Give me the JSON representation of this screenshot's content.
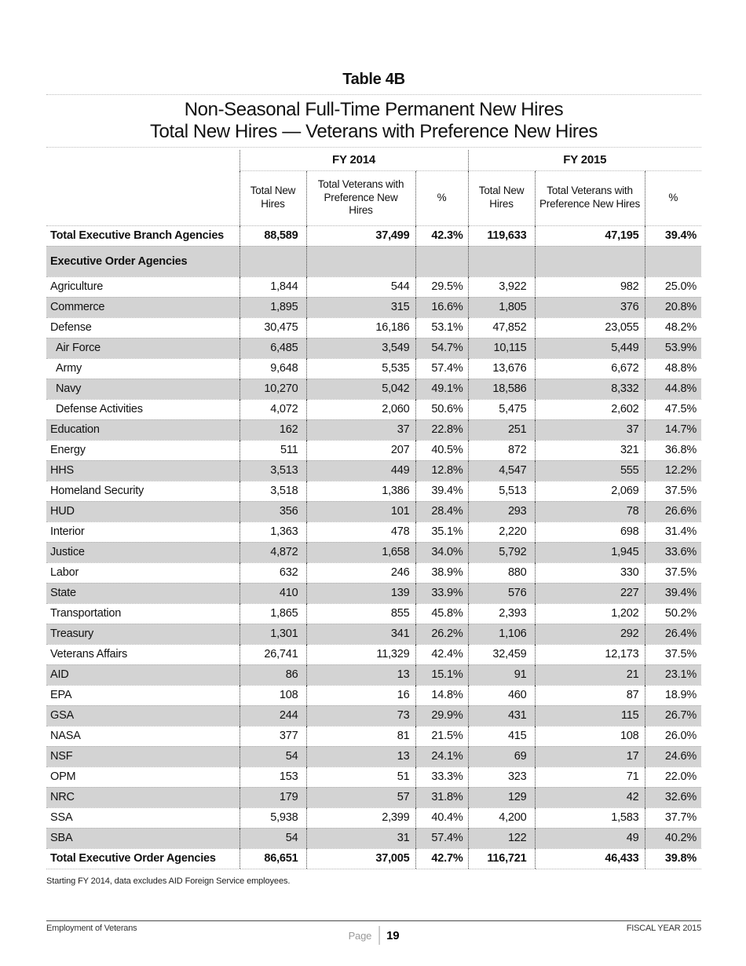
{
  "page": {
    "table_label": "Table 4B",
    "subtitle_line1": "Non-Seasonal Full-Time Permanent New Hires",
    "subtitle_line2": "Total New Hires — Veterans with Preference New Hires",
    "footnote": "Starting FY 2014, data excludes AID Foreign Service employees.",
    "footer": {
      "left": "Employment of Veterans",
      "page_label": "Page",
      "page_number": "19",
      "right": "FISCAL YEAR 2015"
    }
  },
  "colors": {
    "row_stripe": "#d3d3d3"
  },
  "table": {
    "group_headers": [
      "FY 2014",
      "FY 2015"
    ],
    "column_headers": [
      "Total New Hires",
      "Total Veterans with Preference New Hires",
      "%",
      "Total New Hires",
      "Total Veterans with Preference New Hires",
      "%"
    ],
    "rows": [
      {
        "label": "Total Executive Branch Agencies",
        "style": "total",
        "indent": false,
        "values": [
          "88,589",
          "37,499",
          "42.3%",
          "119,633",
          "47,195",
          "39.4%"
        ]
      },
      {
        "label": "Executive Order Agencies",
        "style": "section",
        "indent": false,
        "values": [
          "",
          "",
          "",
          "",
          "",
          ""
        ]
      },
      {
        "label": "Agriculture",
        "style": "normal",
        "indent": false,
        "values": [
          "1,844",
          "544",
          "29.5%",
          "3,922",
          "982",
          "25.0%"
        ]
      },
      {
        "label": "Commerce",
        "style": "normal",
        "indent": false,
        "values": [
          "1,895",
          "315",
          "16.6%",
          "1,805",
          "376",
          "20.8%"
        ]
      },
      {
        "label": "Defense",
        "style": "normal",
        "indent": false,
        "values": [
          "30,475",
          "16,186",
          "53.1%",
          "47,852",
          "23,055",
          "48.2%"
        ]
      },
      {
        "label": "Air Force",
        "style": "normal",
        "indent": true,
        "values": [
          "6,485",
          "3,549",
          "54.7%",
          "10,115",
          "5,449",
          "53.9%"
        ]
      },
      {
        "label": "Army",
        "style": "normal",
        "indent": true,
        "values": [
          "9,648",
          "5,535",
          "57.4%",
          "13,676",
          "6,672",
          "48.8%"
        ]
      },
      {
        "label": "Navy",
        "style": "normal",
        "indent": true,
        "values": [
          "10,270",
          "5,042",
          "49.1%",
          "18,586",
          "8,332",
          "44.8%"
        ]
      },
      {
        "label": "Defense Activities",
        "style": "normal",
        "indent": true,
        "values": [
          "4,072",
          "2,060",
          "50.6%",
          "5,475",
          "2,602",
          "47.5%"
        ]
      },
      {
        "label": "Education",
        "style": "normal",
        "indent": false,
        "values": [
          "162",
          "37",
          "22.8%",
          "251",
          "37",
          "14.7%"
        ]
      },
      {
        "label": "Energy",
        "style": "normal",
        "indent": false,
        "values": [
          "511",
          "207",
          "40.5%",
          "872",
          "321",
          "36.8%"
        ]
      },
      {
        "label": "HHS",
        "style": "normal",
        "indent": false,
        "values": [
          "3,513",
          "449",
          "12.8%",
          "4,547",
          "555",
          "12.2%"
        ]
      },
      {
        "label": "Homeland Security",
        "style": "normal",
        "indent": false,
        "values": [
          "3,518",
          "1,386",
          "39.4%",
          "5,513",
          "2,069",
          "37.5%"
        ]
      },
      {
        "label": "HUD",
        "style": "normal",
        "indent": false,
        "values": [
          "356",
          "101",
          "28.4%",
          "293",
          "78",
          "26.6%"
        ]
      },
      {
        "label": "Interior",
        "style": "normal",
        "indent": false,
        "values": [
          "1,363",
          "478",
          "35.1%",
          "2,220",
          "698",
          "31.4%"
        ]
      },
      {
        "label": "Justice",
        "style": "normal",
        "indent": false,
        "values": [
          "4,872",
          "1,658",
          "34.0%",
          "5,792",
          "1,945",
          "33.6%"
        ]
      },
      {
        "label": "Labor",
        "style": "normal",
        "indent": false,
        "values": [
          "632",
          "246",
          "38.9%",
          "880",
          "330",
          "37.5%"
        ]
      },
      {
        "label": "State",
        "style": "normal",
        "indent": false,
        "values": [
          "410",
          "139",
          "33.9%",
          "576",
          "227",
          "39.4%"
        ]
      },
      {
        "label": "Transportation",
        "style": "normal",
        "indent": false,
        "values": [
          "1,865",
          "855",
          "45.8%",
          "2,393",
          "1,202",
          "50.2%"
        ]
      },
      {
        "label": "Treasury",
        "style": "normal",
        "indent": false,
        "values": [
          "1,301",
          "341",
          "26.2%",
          "1,106",
          "292",
          "26.4%"
        ]
      },
      {
        "label": "Veterans Affairs",
        "style": "normal",
        "indent": false,
        "values": [
          "26,741",
          "11,329",
          "42.4%",
          "32,459",
          "12,173",
          "37.5%"
        ]
      },
      {
        "label": "AID",
        "style": "normal",
        "indent": false,
        "values": [
          "86",
          "13",
          "15.1%",
          "91",
          "21",
          "23.1%"
        ]
      },
      {
        "label": "EPA",
        "style": "normal",
        "indent": false,
        "values": [
          "108",
          "16",
          "14.8%",
          "460",
          "87",
          "18.9%"
        ]
      },
      {
        "label": "GSA",
        "style": "normal",
        "indent": false,
        "values": [
          "244",
          "73",
          "29.9%",
          "431",
          "115",
          "26.7%"
        ]
      },
      {
        "label": "NASA",
        "style": "normal",
        "indent": false,
        "values": [
          "377",
          "81",
          "21.5%",
          "415",
          "108",
          "26.0%"
        ]
      },
      {
        "label": "NSF",
        "style": "normal",
        "indent": false,
        "values": [
          "54",
          "13",
          "24.1%",
          "69",
          "17",
          "24.6%"
        ]
      },
      {
        "label": "OPM",
        "style": "normal",
        "indent": false,
        "values": [
          "153",
          "51",
          "33.3%",
          "323",
          "71",
          "22.0%"
        ]
      },
      {
        "label": "NRC",
        "style": "normal",
        "indent": false,
        "values": [
          "179",
          "57",
          "31.8%",
          "129",
          "42",
          "32.6%"
        ]
      },
      {
        "label": "SSA",
        "style": "normal",
        "indent": false,
        "values": [
          "5,938",
          "2,399",
          "40.4%",
          "4,200",
          "1,583",
          "37.7%"
        ]
      },
      {
        "label": "SBA",
        "style": "normal",
        "indent": false,
        "values": [
          "54",
          "31",
          "57.4%",
          "122",
          "49",
          "40.2%"
        ]
      },
      {
        "label": "Total Executive Order Agencies",
        "style": "total",
        "indent": false,
        "values": [
          "86,651",
          "37,005",
          "42.7%",
          "116,721",
          "46,433",
          "39.8%"
        ]
      }
    ]
  }
}
